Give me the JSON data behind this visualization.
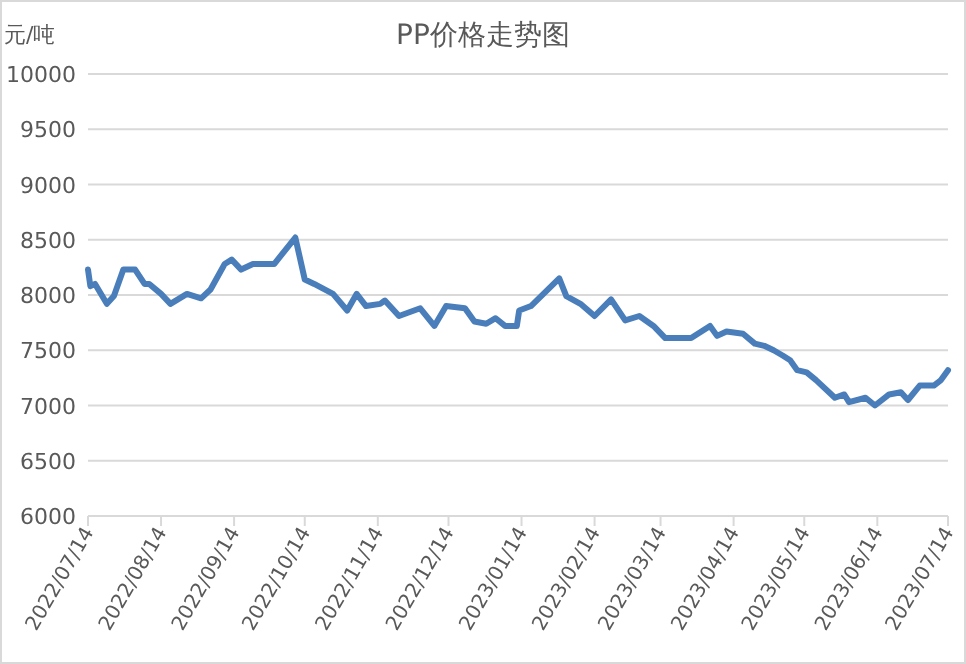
{
  "chart_data": {
    "type": "line",
    "title": "PP价格走势图",
    "ylabel": "元/吨",
    "x": [
      "2022-07-14",
      "2022-07-15",
      "2022-07-17",
      "2022-07-22",
      "2022-07-25",
      "2022-07-29",
      "2022-08-03",
      "2022-08-07",
      "2022-08-09",
      "2022-08-14",
      "2022-08-18",
      "2022-08-25",
      "2022-08-31",
      "2022-09-04",
      "2022-09-10",
      "2022-09-13",
      "2022-09-17",
      "2022-09-22",
      "2022-10-01",
      "2022-10-10",
      "2022-10-14",
      "2022-10-18",
      "2022-10-26",
      "2022-11-01",
      "2022-11-05",
      "2022-11-09",
      "2022-11-15",
      "2022-11-17",
      "2022-11-23",
      "2022-12-02",
      "2022-12-08",
      "2022-12-13",
      "2022-12-21",
      "2022-12-25",
      "2022-12-30",
      "2023-01-03",
      "2023-01-07",
      "2023-01-12",
      "2023-01-13",
      "2023-01-18",
      "2023-01-30",
      "2023-02-02",
      "2023-02-08",
      "2023-02-14",
      "2023-02-21",
      "2023-02-27",
      "2023-03-05",
      "2023-03-11",
      "2023-03-16",
      "2023-03-27",
      "2023-04-04",
      "2023-04-07",
      "2023-04-11",
      "2023-04-18",
      "2023-04-23",
      "2023-04-27",
      "2023-05-01",
      "2023-05-05",
      "2023-05-08",
      "2023-05-11",
      "2023-05-15",
      "2023-05-19",
      "2023-05-27",
      "2023-05-31",
      "2023-06-02",
      "2023-06-09",
      "2023-06-13",
      "2023-06-19",
      "2023-06-24",
      "2023-06-27",
      "2023-07-02",
      "2023-07-08",
      "2023-07-11",
      "2023-07-14"
    ],
    "series": [
      {
        "color": "#4a7ebb",
        "values": [
          8230,
          8080,
          8100,
          7920,
          7990,
          8230,
          8230,
          8100,
          8100,
          8010,
          7920,
          8010,
          7970,
          8050,
          8280,
          8320,
          8230,
          8280,
          8280,
          8520,
          8140,
          8100,
          8010,
          7860,
          8010,
          7900,
          7920,
          7950,
          7810,
          7880,
          7720,
          7900,
          7880,
          7760,
          7740,
          7790,
          7720,
          7720,
          7860,
          7900,
          8150,
          7990,
          7920,
          7810,
          7960,
          7770,
          7810,
          7720,
          7610,
          7610,
          7720,
          7630,
          7670,
          7650,
          7560,
          7540,
          7500,
          7450,
          7410,
          7320,
          7300,
          7230,
          7070,
          7100,
          7030,
          7070,
          7000,
          7100,
          7120,
          7050,
          7180,
          7180,
          7230,
          7320
        ]
      }
    ],
    "xlim": [
      "2022-07-14",
      "2023-07-14"
    ],
    "xticks": [
      {
        "value": "2022-07-14",
        "label": "2022/07/14"
      },
      {
        "value": "2022-08-14",
        "label": "2022/08/14"
      },
      {
        "value": "2022-09-14",
        "label": "2022/09/14"
      },
      {
        "value": "2022-10-14",
        "label": "2022/10/14"
      },
      {
        "value": "2022-11-14",
        "label": "2022/11/14"
      },
      {
        "value": "2022-12-14",
        "label": "2022/12/14"
      },
      {
        "value": "2023-01-14",
        "label": "2023/01/14"
      },
      {
        "value": "2023-02-14",
        "label": "2023/02/14"
      },
      {
        "value": "2023-03-14",
        "label": "2023/03/14"
      },
      {
        "value": "2023-04-14",
        "label": "2023/04/14"
      },
      {
        "value": "2023-05-14",
        "label": "2023/05/14"
      },
      {
        "value": "2023-06-14",
        "label": "2023/06/14"
      },
      {
        "value": "2023-07-14",
        "label": "2023/07/14"
      }
    ],
    "ylim": [
      6000,
      10000
    ],
    "yticks": [
      6000,
      6500,
      7000,
      7500,
      8000,
      8500,
      9000,
      9500,
      10000
    ],
    "grid": "y",
    "marker": "none",
    "line_style": "solid"
  }
}
